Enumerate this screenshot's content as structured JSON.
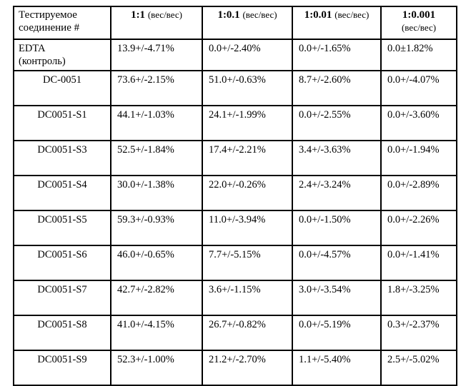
{
  "header": {
    "compound_line1": "Тестируемое",
    "compound_line2": "соединение #",
    "r1_bold": "1:1",
    "r1_unit": "(вес/вес)",
    "r2_bold": "1:0.1",
    "r2_unit": "(вес/вес)",
    "r3_bold": "1:0.01",
    "r3_unit": "(вес/вес)",
    "r4_bold": "1:0.001",
    "r4_unit": "(вес/вес)"
  },
  "rows": [
    {
      "label_line1": "EDTA",
      "label_line2": "(контроль)",
      "c1": "13.9+/-4.71%",
      "c2": "0.0+/-2.40%",
      "c3": "0.0+/-1.65%",
      "c4": "0.0±1.82%"
    },
    {
      "label_line1": "DC-0051",
      "label_line2": "",
      "c1": "73.6+/-2.15%",
      "c2": "51.0+/-0.63%",
      "c3": "8.7+/-2.60%",
      "c4": "0.0+/-4.07%"
    },
    {
      "label_line1": "DC0051-S1",
      "label_line2": "",
      "c1": "44.1+/-1.03%",
      "c2": "24.1+/-1.99%",
      "c3": "0.0+/-2.55%",
      "c4": "0.0+/-3.60%"
    },
    {
      "label_line1": "DC0051-S3",
      "label_line2": "",
      "c1": "52.5+/-1.84%",
      "c2": "17.4+/-2.21%",
      "c3": "3.4+/-3.63%",
      "c4": "0.0+/-1.94%"
    },
    {
      "label_line1": "DC0051-S4",
      "label_line2": "",
      "c1": "30.0+/-1.38%",
      "c2": "22.0+/-0.26%",
      "c3": "2.4+/-3.24%",
      "c4": "0.0+/-2.89%"
    },
    {
      "label_line1": "DC0051-S5",
      "label_line2": "",
      "c1": "59.3+/-0.93%",
      "c2": "11.0+/-3.94%",
      "c3": "0.0+/-1.50%",
      "c4": "0.0+/-2.26%"
    },
    {
      "label_line1": "DC0051-S6",
      "label_line2": "",
      "c1": "46.0+/-0.65%",
      "c2": "7.7+/-5.15%",
      "c3": "0.0+/-4.57%",
      "c4": "0.0+/-1.41%"
    },
    {
      "label_line1": "DC0051-S7",
      "label_line2": "",
      "c1": "42.7+/-2.82%",
      "c2": "3.6+/-1.15%",
      "c3": "3.0+/-3.54%",
      "c4": "1.8+/-3.25%"
    },
    {
      "label_line1": "DC0051-S8",
      "label_line2": "",
      "c1": "41.0+/-4.15%",
      "c2": "26.7+/-0.82%",
      "c3": "0.0+/-5.19%",
      "c4": "0.3+/-2.37%"
    },
    {
      "label_line1": "DC0051-S9",
      "label_line2": "",
      "c1": "52.3+/-1.00%",
      "c2": "21.2+/-2.70%",
      "c3": "1.1+/-5.40%",
      "c4": "2.5+/-5.02%"
    }
  ]
}
